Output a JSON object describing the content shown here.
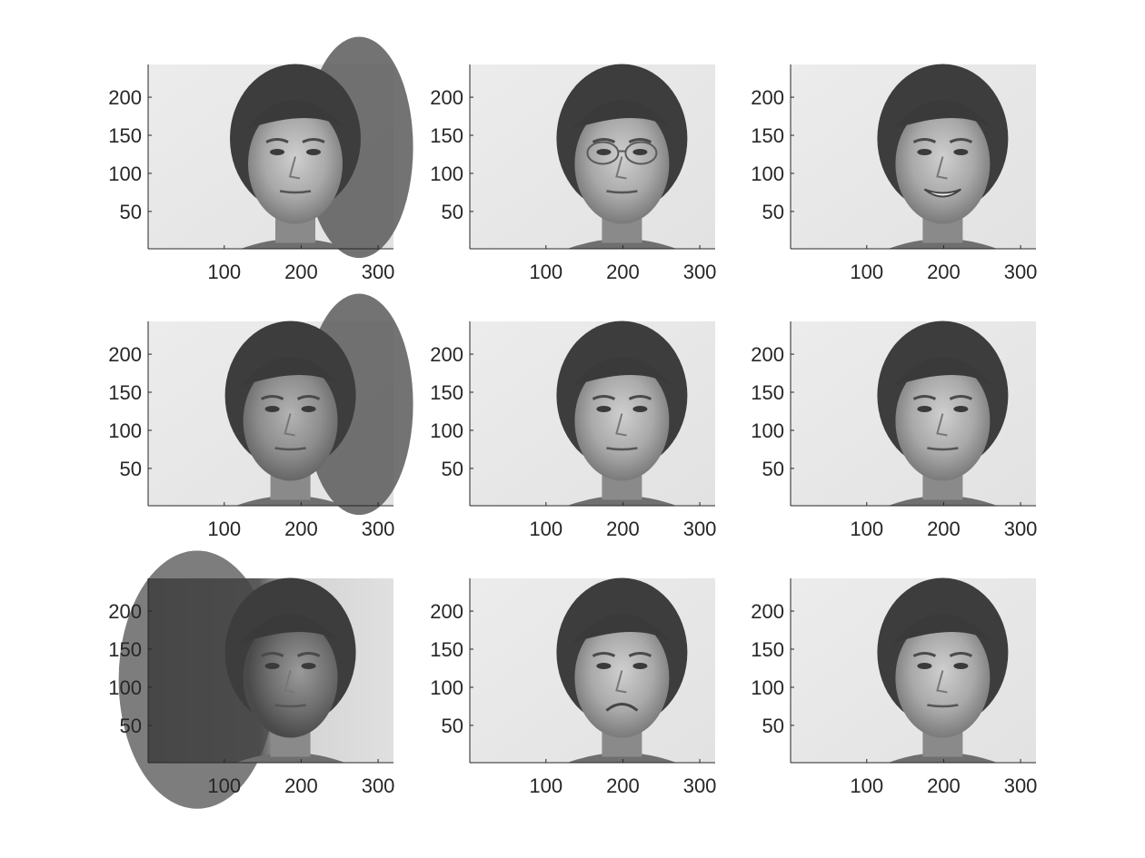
{
  "figure": {
    "grid": {
      "rows": 3,
      "cols": 3
    },
    "x_axis": {
      "range": [
        1,
        320
      ],
      "ticks": [
        100,
        200,
        300
      ]
    },
    "y_axis": {
      "range": [
        1,
        243
      ],
      "ticks": [
        50,
        100,
        150,
        200
      ]
    },
    "colors": {
      "axis": "#262626",
      "tick_text": "#262626",
      "background": "#ffffff"
    },
    "panels": [
      {
        "index": 1,
        "image": "face-grayscale-neutral-light",
        "bg_tone": "light",
        "shadow": "right-dark"
      },
      {
        "index": 2,
        "image": "face-grayscale-glasses",
        "bg_tone": "light",
        "shadow": "none"
      },
      {
        "index": 3,
        "image": "face-grayscale-smiling",
        "bg_tone": "light",
        "shadow": "none"
      },
      {
        "index": 4,
        "image": "face-grayscale-shadow-right",
        "bg_tone": "light",
        "shadow": "right-dark"
      },
      {
        "index": 5,
        "image": "face-grayscale-neutral-bright",
        "bg_tone": "light",
        "shadow": "none"
      },
      {
        "index": 6,
        "image": "face-grayscale-neutral",
        "bg_tone": "light",
        "shadow": "none"
      },
      {
        "index": 7,
        "image": "face-grayscale-dark-left",
        "bg_tone": "mixed",
        "shadow": "left-dark"
      },
      {
        "index": 8,
        "image": "face-grayscale-pout",
        "bg_tone": "light",
        "shadow": "none"
      },
      {
        "index": 9,
        "image": "face-grayscale-neutral-soft",
        "bg_tone": "light",
        "shadow": "none"
      }
    ]
  }
}
